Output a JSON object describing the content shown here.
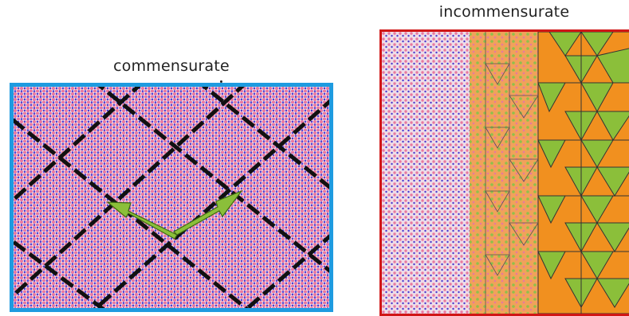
{
  "labels": {
    "commensurate": "commensurate",
    "incommensurate": "incommensurate"
  },
  "colors": {
    "commensurate_border": "#1e9be0",
    "incommensurate_border": "#d01616",
    "atom_pink": "#e8789f",
    "atom_blue": "#4a3ad0",
    "bond": "#ffffff",
    "moire_line": "#111111",
    "arrow_fill": "#8bbf3a",
    "tile_orange": "#f1901f",
    "tile_green": "#8bbf3a"
  },
  "icons": {
    "arrows": "lattice-vector-arrows",
    "moire": "moire-superlattice-dashed-lines"
  }
}
